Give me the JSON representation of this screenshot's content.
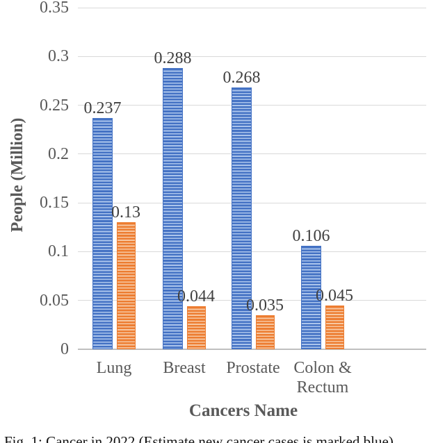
{
  "figure": {
    "caption": "Fig. 1: Cancer in 2022 (Estimate new cancer cases is marked blue)"
  },
  "chart_data": {
    "type": "bar",
    "title": "",
    "xlabel": "Cancers Name",
    "ylabel": "People (Million)",
    "categories": [
      "Lung",
      "Breast",
      "Prostate",
      "Colon & Rectum"
    ],
    "series": [
      {
        "name": "Series 1 (blue striped bars)",
        "color": "#4472C4",
        "values": [
          0.237,
          0.288,
          0.268,
          0.106
        ],
        "labels": [
          "0.237",
          "0.288",
          "0.268",
          "0.106"
        ]
      },
      {
        "name": "Series 2 (orange striped bars)",
        "color": "#ED7D31",
        "values": [
          0.13,
          0.044,
          0.035,
          0.045
        ],
        "labels": [
          "0.13",
          "0.044",
          "0.035",
          "0.045"
        ]
      }
    ],
    "ylim": [
      0,
      0.35
    ],
    "ytick_labels": [
      "0.35",
      "0.3",
      "0.25",
      "0.2",
      "0.15",
      "0.1",
      "0.05",
      "0"
    ],
    "grid": true,
    "legend_position": "none",
    "data_labels": true
  },
  "colors": {
    "blue": "#4472C4",
    "blue_stripe_light": "#ACC5EC",
    "orange": "#ED7D31",
    "orange_stripe_light": "#F7C8A2",
    "gridline": "#D9D9D9",
    "axis_line": "#BFBFBF",
    "tick_label": "#595959",
    "axis_title": "#595959",
    "data_label": "#404040",
    "caption_text": "#111111"
  }
}
